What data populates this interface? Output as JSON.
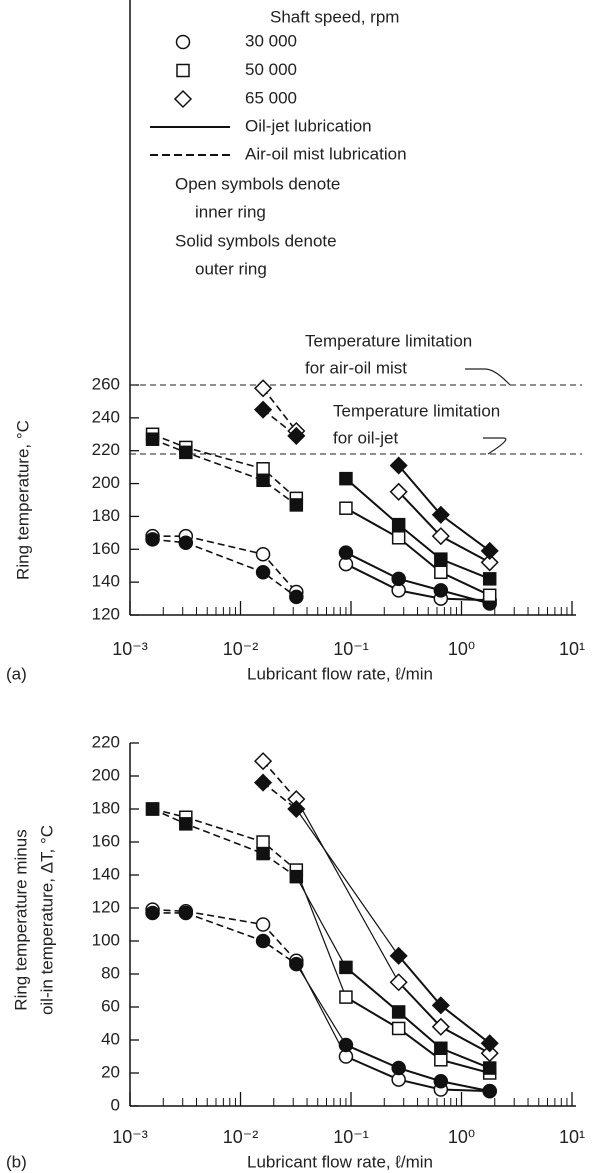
{
  "chart_data": [
    {
      "type": "scatter-line",
      "panel_label": "(a)",
      "xscale": "log",
      "xlabel": "Lubricant flow rate, ℓ/min",
      "ylabel": [
        "Ring temperature, °C"
      ],
      "xlim": [
        0.001,
        10
      ],
      "xticks": [
        {
          "value": 0.001,
          "label": "10⁻³"
        },
        {
          "value": 0.01,
          "label": "10⁻²"
        },
        {
          "value": 0.1,
          "label": "10⁻¹"
        },
        {
          "value": 1,
          "label": "10⁰"
        },
        {
          "value": 10,
          "label": "10¹"
        }
      ],
      "ylim": [
        120,
        260
      ],
      "yticks": [
        120,
        140,
        160,
        180,
        200,
        220,
        240,
        260
      ],
      "reference_lines": [
        {
          "value": 260
        },
        {
          "value": 218
        }
      ],
      "annotations": [
        {
          "lines": [
            "Temperature limitation",
            "for air-oil mist"
          ]
        },
        {
          "lines": [
            "Temperature limitation",
            "for oil-jet"
          ]
        }
      ],
      "legend": {
        "title": "Shaft speed, rpm",
        "markers": [
          {
            "marker": "circle",
            "label": "30 000"
          },
          {
            "marker": "square",
            "label": "50 000"
          },
          {
            "marker": "diamond",
            "label": "65 000"
          }
        ],
        "lines": [
          {
            "dashed": false,
            "label": "Oil-jet lubrication"
          },
          {
            "dashed": true,
            "label": "Air-oil mist lubrication"
          }
        ],
        "notes": [
          [
            "Open symbols denote",
            "inner ring"
          ],
          [
            "Solid symbols denote",
            "outer ring"
          ]
        ]
      },
      "series": [
        {
          "marker": "circle",
          "filled": false,
          "dashed": true,
          "x": [
            0.0016,
            0.0032,
            0.016,
            0.032
          ],
          "values": [
            168,
            168,
            157,
            134
          ]
        },
        {
          "marker": "circle",
          "filled": true,
          "dashed": true,
          "x": [
            0.0016,
            0.0032,
            0.016,
            0.032
          ],
          "values": [
            166,
            164,
            146,
            131
          ]
        },
        {
          "marker": "square",
          "filled": false,
          "dashed": true,
          "x": [
            0.0016,
            0.0032,
            0.016,
            0.032
          ],
          "values": [
            230,
            222,
            209,
            191
          ]
        },
        {
          "marker": "square",
          "filled": true,
          "dashed": true,
          "x": [
            0.0016,
            0.0032,
            0.016,
            0.032
          ],
          "values": [
            227,
            219,
            202,
            187
          ]
        },
        {
          "marker": "diamond",
          "filled": false,
          "dashed": true,
          "x": [
            0.016,
            0.032
          ],
          "values": [
            258,
            232
          ]
        },
        {
          "marker": "diamond",
          "filled": true,
          "dashed": true,
          "x": [
            0.016,
            0.032
          ],
          "values": [
            245,
            229
          ]
        },
        {
          "marker": "circle",
          "filled": false,
          "dashed": false,
          "x": [
            0.09,
            0.27,
            0.65,
            1.8
          ],
          "values": [
            151,
            135,
            130,
            129
          ]
        },
        {
          "marker": "circle",
          "filled": true,
          "dashed": false,
          "x": [
            0.09,
            0.27,
            0.65,
            1.8
          ],
          "values": [
            158,
            142,
            135,
            127
          ]
        },
        {
          "marker": "square",
          "filled": false,
          "dashed": false,
          "x": [
            0.09,
            0.27,
            0.65,
            1.8
          ],
          "values": [
            185,
            167,
            146,
            132
          ]
        },
        {
          "marker": "square",
          "filled": true,
          "dashed": false,
          "x": [
            0.09,
            0.27,
            0.65,
            1.8
          ],
          "values": [
            203,
            175,
            154,
            142
          ]
        },
        {
          "marker": "diamond",
          "filled": false,
          "dashed": false,
          "x": [
            0.27,
            0.65,
            1.8
          ],
          "values": [
            195,
            168,
            152
          ]
        },
        {
          "marker": "diamond",
          "filled": true,
          "dashed": false,
          "x": [
            0.27,
            0.65,
            1.8
          ],
          "values": [
            211,
            181,
            159
          ]
        }
      ]
    },
    {
      "type": "scatter-line",
      "panel_label": "(b)",
      "xscale": "log",
      "connect_lubrication_regimes": true,
      "xlabel": "Lubricant flow rate, ℓ/min",
      "ylabel": [
        "Ring temperature minus",
        "oil-in temperature, ΔT, °C"
      ],
      "xlim": [
        0.001,
        10
      ],
      "xticks": [
        {
          "value": 0.001,
          "label": "10⁻³"
        },
        {
          "value": 0.01,
          "label": "10⁻²"
        },
        {
          "value": 0.1,
          "label": "10⁻¹"
        },
        {
          "value": 1,
          "label": "10⁰"
        },
        {
          "value": 10,
          "label": "10¹"
        }
      ],
      "ylim": [
        0,
        220
      ],
      "yticks": [
        0,
        20,
        40,
        60,
        80,
        100,
        120,
        140,
        160,
        180,
        200,
        220
      ],
      "series": [
        {
          "marker": "circle",
          "filled": false,
          "dashed": true,
          "x": [
            0.0016,
            0.0032,
            0.016,
            0.032
          ],
          "values": [
            119,
            118,
            110,
            88
          ]
        },
        {
          "marker": "circle",
          "filled": true,
          "dashed": true,
          "x": [
            0.0016,
            0.0032,
            0.016,
            0.032
          ],
          "values": [
            117,
            117,
            100,
            86
          ]
        },
        {
          "marker": "square",
          "filled": false,
          "dashed": true,
          "x": [
            0.0016,
            0.0032,
            0.016,
            0.032
          ],
          "values": [
            180,
            175,
            160,
            143
          ]
        },
        {
          "marker": "square",
          "filled": true,
          "dashed": true,
          "x": [
            0.0016,
            0.0032,
            0.016,
            0.032
          ],
          "values": [
            180,
            171,
            153,
            139
          ]
        },
        {
          "marker": "diamond",
          "filled": false,
          "dashed": true,
          "x": [
            0.016,
            0.032
          ],
          "values": [
            209,
            186
          ]
        },
        {
          "marker": "diamond",
          "filled": true,
          "dashed": true,
          "x": [
            0.016,
            0.032
          ],
          "values": [
            196,
            180
          ]
        },
        {
          "marker": "circle",
          "filled": false,
          "dashed": false,
          "x": [
            0.09,
            0.27,
            0.65,
            1.8
          ],
          "values": [
            30,
            16,
            10,
            9
          ]
        },
        {
          "marker": "circle",
          "filled": true,
          "dashed": false,
          "x": [
            0.09,
            0.27,
            0.65,
            1.8
          ],
          "values": [
            37,
            23,
            15,
            9
          ]
        },
        {
          "marker": "square",
          "filled": false,
          "dashed": false,
          "x": [
            0.09,
            0.27,
            0.65,
            1.8
          ],
          "values": [
            66,
            47,
            28,
            20
          ]
        },
        {
          "marker": "square",
          "filled": true,
          "dashed": false,
          "x": [
            0.09,
            0.27,
            0.65,
            1.8
          ],
          "values": [
            84,
            57,
            35,
            23
          ]
        },
        {
          "marker": "diamond",
          "filled": false,
          "dashed": false,
          "x": [
            0.27,
            0.65,
            1.8
          ],
          "values": [
            75,
            48,
            32
          ]
        },
        {
          "marker": "diamond",
          "filled": true,
          "dashed": false,
          "x": [
            0.27,
            0.65,
            1.8
          ],
          "values": [
            91,
            61,
            38
          ]
        }
      ]
    }
  ]
}
